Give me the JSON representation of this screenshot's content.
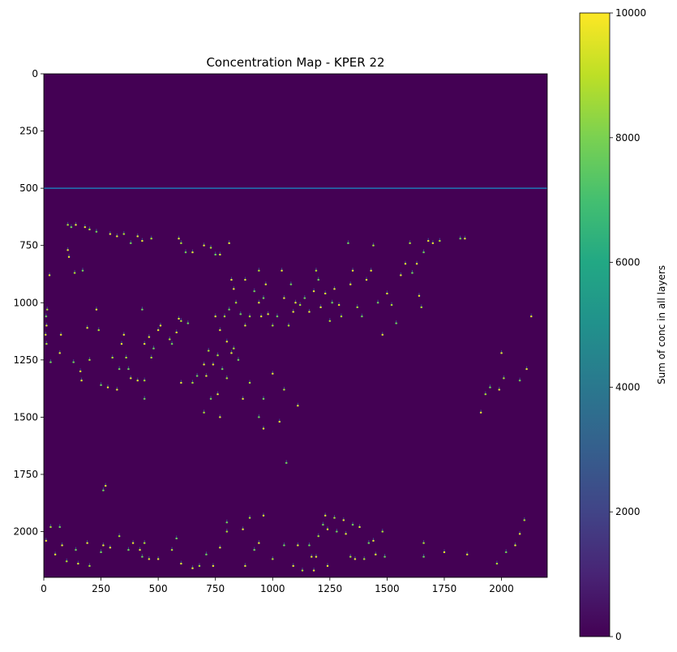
{
  "chart_data": {
    "type": "heatmap",
    "title": "Concentration Map - KPER 22",
    "xlim": [
      0,
      2200
    ],
    "ylim": [
      2200,
      0
    ],
    "x_ticks": [
      0,
      250,
      500,
      750,
      1000,
      1250,
      1500,
      1750,
      2000
    ],
    "y_ticks": [
      0,
      250,
      500,
      750,
      1000,
      1250,
      1500,
      1750,
      2000
    ],
    "colorbar": {
      "label": "Sum of conc in all layers",
      "min": 0,
      "max": 10000,
      "ticks": [
        0,
        2000,
        4000,
        6000,
        8000,
        10000
      ],
      "colormap": "viridis"
    },
    "background_value": 0,
    "horizontal_line": {
      "y": 500,
      "color": "#1f77b4"
    },
    "hotspots": [
      [
        25,
        880
      ],
      [
        15,
        1030
      ],
      [
        10,
        1060
      ],
      [
        12,
        1100
      ],
      [
        8,
        1140
      ],
      [
        12,
        1180
      ],
      [
        30,
        1260
      ],
      [
        75,
        1140
      ],
      [
        70,
        1220
      ],
      [
        105,
        660
      ],
      [
        120,
        670
      ],
      [
        140,
        660
      ],
      [
        180,
        670
      ],
      [
        200,
        680
      ],
      [
        230,
        690
      ],
      [
        105,
        770
      ],
      [
        110,
        800
      ],
      [
        135,
        870
      ],
      [
        170,
        860
      ],
      [
        230,
        1030
      ],
      [
        190,
        1110
      ],
      [
        240,
        1120
      ],
      [
        130,
        1260
      ],
      [
        160,
        1300
      ],
      [
        165,
        1340
      ],
      [
        200,
        1250
      ],
      [
        250,
        1360
      ],
      [
        280,
        1370
      ],
      [
        320,
        1380
      ],
      [
        300,
        1240
      ],
      [
        330,
        1290
      ],
      [
        350,
        1140
      ],
      [
        340,
        1180
      ],
      [
        360,
        1240
      ],
      [
        370,
        1290
      ],
      [
        380,
        1330
      ],
      [
        410,
        1340
      ],
      [
        440,
        1340
      ],
      [
        440,
        1420
      ],
      [
        290,
        700
      ],
      [
        320,
        710
      ],
      [
        350,
        700
      ],
      [
        380,
        740
      ],
      [
        410,
        710
      ],
      [
        430,
        730
      ],
      [
        470,
        720
      ],
      [
        430,
        1030
      ],
      [
        440,
        1180
      ],
      [
        460,
        1150
      ],
      [
        470,
        1240
      ],
      [
        480,
        1200
      ],
      [
        500,
        1120
      ],
      [
        510,
        1100
      ],
      [
        550,
        1160
      ],
      [
        560,
        1180
      ],
      [
        580,
        1130
      ],
      [
        590,
        1070
      ],
      [
        600,
        1080
      ],
      [
        630,
        1090
      ],
      [
        600,
        1350
      ],
      [
        590,
        720
      ],
      [
        600,
        740
      ],
      [
        620,
        780
      ],
      [
        650,
        780
      ],
      [
        700,
        750
      ],
      [
        730,
        760
      ],
      [
        750,
        790
      ],
      [
        770,
        790
      ],
      [
        810,
        740
      ],
      [
        650,
        1350
      ],
      [
        670,
        1320
      ],
      [
        700,
        1270
      ],
      [
        710,
        1320
      ],
      [
        720,
        1210
      ],
      [
        730,
        1420
      ],
      [
        760,
        1400
      ],
      [
        740,
        1270
      ],
      [
        760,
        1230
      ],
      [
        780,
        1290
      ],
      [
        800,
        1170
      ],
      [
        820,
        1220
      ],
      [
        830,
        1200
      ],
      [
        850,
        1250
      ],
      [
        750,
        1060
      ],
      [
        770,
        1120
      ],
      [
        790,
        1060
      ],
      [
        810,
        1030
      ],
      [
        820,
        900
      ],
      [
        830,
        940
      ],
      [
        840,
        1000
      ],
      [
        860,
        1050
      ],
      [
        880,
        900
      ],
      [
        880,
        1100
      ],
      [
        900,
        1060
      ],
      [
        920,
        950
      ],
      [
        940,
        1000
      ],
      [
        950,
        1060
      ],
      [
        940,
        860
      ],
      [
        960,
        980
      ],
      [
        970,
        920
      ],
      [
        980,
        1050
      ],
      [
        1000,
        1100
      ],
      [
        1020,
        1060
      ],
      [
        1040,
        860
      ],
      [
        1050,
        980
      ],
      [
        1070,
        1100
      ],
      [
        1080,
        920
      ],
      [
        1090,
        1040
      ],
      [
        1100,
        1000
      ],
      [
        1120,
        1010
      ],
      [
        1140,
        980
      ],
      [
        1160,
        1040
      ],
      [
        1180,
        950
      ],
      [
        1190,
        860
      ],
      [
        1200,
        900
      ],
      [
        1210,
        1020
      ],
      [
        1230,
        960
      ],
      [
        1250,
        1080
      ],
      [
        1260,
        1000
      ],
      [
        1270,
        940
      ],
      [
        1290,
        1010
      ],
      [
        1300,
        1060
      ],
      [
        1330,
        740
      ],
      [
        1340,
        920
      ],
      [
        1350,
        860
      ],
      [
        1370,
        1020
      ],
      [
        1390,
        1060
      ],
      [
        1410,
        900
      ],
      [
        1430,
        860
      ],
      [
        1440,
        750
      ],
      [
        1460,
        1000
      ],
      [
        1480,
        1140
      ],
      [
        1500,
        960
      ],
      [
        1520,
        1010
      ],
      [
        1540,
        1090
      ],
      [
        1560,
        880
      ],
      [
        1580,
        830
      ],
      [
        1600,
        740
      ],
      [
        1610,
        870
      ],
      [
        1630,
        830
      ],
      [
        1640,
        970
      ],
      [
        1650,
        1020
      ],
      [
        1660,
        780
      ],
      [
        1680,
        730
      ],
      [
        1700,
        740
      ],
      [
        1730,
        730
      ],
      [
        1820,
        720
      ],
      [
        1840,
        720
      ],
      [
        1910,
        1480
      ],
      [
        1930,
        1400
      ],
      [
        1950,
        1370
      ],
      [
        2000,
        1220
      ],
      [
        1990,
        1380
      ],
      [
        2010,
        1330
      ],
      [
        2080,
        1340
      ],
      [
        2110,
        1290
      ],
      [
        2130,
        1060
      ],
      [
        900,
        1350
      ],
      [
        960,
        1420
      ],
      [
        1000,
        1310
      ],
      [
        1030,
        1520
      ],
      [
        1050,
        1380
      ],
      [
        1060,
        1700
      ],
      [
        1110,
        1450
      ],
      [
        870,
        1420
      ],
      [
        800,
        1330
      ],
      [
        940,
        1500
      ],
      [
        960,
        1550
      ],
      [
        770,
        1500
      ],
      [
        700,
        1480
      ],
      [
        260,
        1820
      ],
      [
        270,
        1800
      ],
      [
        10,
        2040
      ],
      [
        30,
        1980
      ],
      [
        70,
        1980
      ],
      [
        50,
        2100
      ],
      [
        80,
        2060
      ],
      [
        100,
        2130
      ],
      [
        140,
        2080
      ],
      [
        150,
        2140
      ],
      [
        190,
        2050
      ],
      [
        200,
        2150
      ],
      [
        250,
        2090
      ],
      [
        260,
        2060
      ],
      [
        290,
        2070
      ],
      [
        330,
        2020
      ],
      [
        370,
        2080
      ],
      [
        390,
        2050
      ],
      [
        420,
        2080
      ],
      [
        440,
        2050
      ],
      [
        430,
        2110
      ],
      [
        460,
        2120
      ],
      [
        500,
        2120
      ],
      [
        560,
        2080
      ],
      [
        580,
        2030
      ],
      [
        600,
        2140
      ],
      [
        650,
        2160
      ],
      [
        680,
        2150
      ],
      [
        710,
        2100
      ],
      [
        740,
        2150
      ],
      [
        770,
        2070
      ],
      [
        800,
        2000
      ],
      [
        800,
        1960
      ],
      [
        870,
        1990
      ],
      [
        880,
        2150
      ],
      [
        900,
        1940
      ],
      [
        920,
        2080
      ],
      [
        940,
        2050
      ],
      [
        960,
        1930
      ],
      [
        1000,
        2120
      ],
      [
        1050,
        2060
      ],
      [
        1090,
        2150
      ],
      [
        1110,
        2060
      ],
      [
        1130,
        2170
      ],
      [
        1160,
        2060
      ],
      [
        1170,
        2110
      ],
      [
        1190,
        2110
      ],
      [
        1200,
        2020
      ],
      [
        1220,
        1970
      ],
      [
        1230,
        1930
      ],
      [
        1240,
        1990
      ],
      [
        1270,
        1940
      ],
      [
        1280,
        2000
      ],
      [
        1310,
        1950
      ],
      [
        1320,
        2010
      ],
      [
        1340,
        2110
      ],
      [
        1350,
        1970
      ],
      [
        1360,
        2120
      ],
      [
        1380,
        1980
      ],
      [
        1400,
        2120
      ],
      [
        1420,
        2050
      ],
      [
        1440,
        2040
      ],
      [
        1450,
        2100
      ],
      [
        1480,
        2000
      ],
      [
        1490,
        2110
      ],
      [
        1240,
        2150
      ],
      [
        1180,
        2170
      ],
      [
        1660,
        2050
      ],
      [
        1660,
        2110
      ],
      [
        1750,
        2090
      ],
      [
        1850,
        2100
      ],
      [
        1980,
        2140
      ],
      [
        2020,
        2090
      ],
      [
        2060,
        2060
      ],
      [
        2080,
        2010
      ],
      [
        2100,
        1950
      ]
    ]
  }
}
